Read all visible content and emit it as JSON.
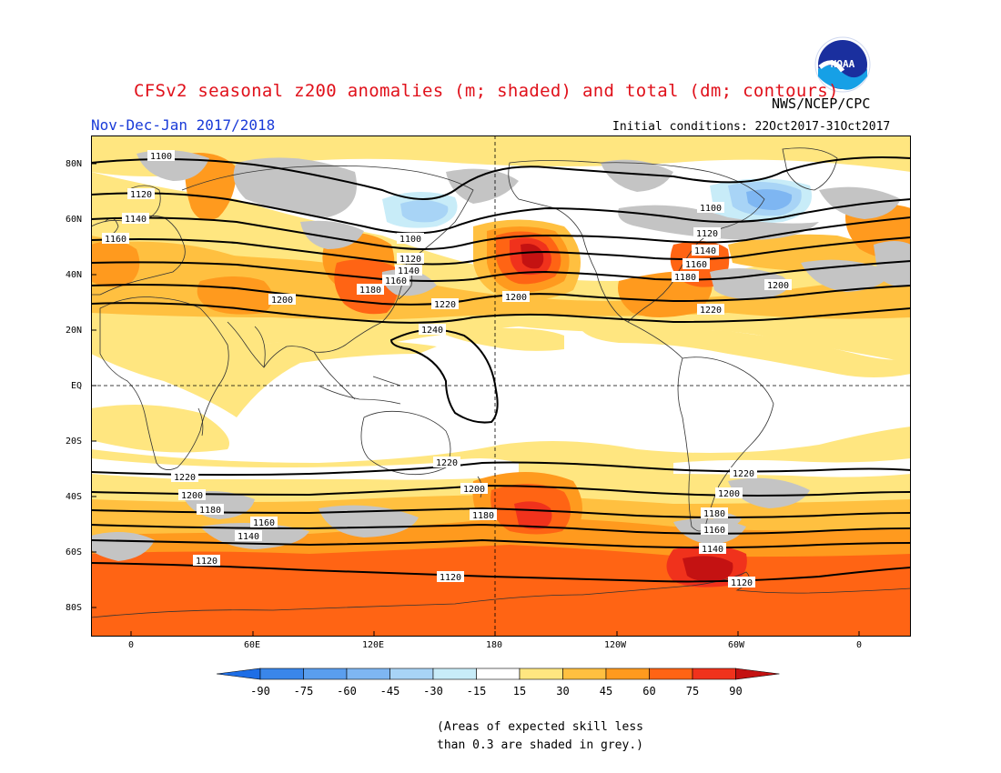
{
  "title": "CFSv2 seasonal z200 anomalies (m; shaded) and total (dm; contours)",
  "subtitle": "Nov-Dec-Jan 2017/2018",
  "agency": "NWS/NCEP/CPC",
  "initial_conditions": "Initial conditions: 22Oct2017-31Oct2017",
  "logo_text": "NOAA",
  "map": {
    "lat_labels": [
      "80N",
      "60N",
      "40N",
      "20N",
      "EQ",
      "20S",
      "40S",
      "60S",
      "80S"
    ],
    "lon_labels": [
      "0",
      "60E",
      "120E",
      "180",
      "120W",
      "60W",
      "0"
    ],
    "contour_labels": {
      "nh": [
        "1100",
        "1120",
        "1140",
        "1160",
        "1180",
        "1200",
        "1220",
        "1240"
      ],
      "sh": [
        "1220",
        "1200",
        "1180",
        "1160",
        "1140",
        "1120"
      ]
    }
  },
  "colorbar": {
    "labels": [
      "-90",
      "-75",
      "-60",
      "-45",
      "-30",
      "-15",
      "15",
      "30",
      "45",
      "60",
      "75",
      "90"
    ],
    "colors": [
      "#1e6ee6",
      "#3a86ea",
      "#5a9eee",
      "#7eb6f2",
      "#a8d4f6",
      "#c8ecf8",
      "#ffffff",
      "#ffe680",
      "#ffc040",
      "#ff9a1e",
      "#ff6414",
      "#f0321c",
      "#c41212"
    ]
  },
  "note": {
    "line1": "(Areas of expected skill less",
    "line2": "than 0.3 are shaded in grey.)"
  }
}
